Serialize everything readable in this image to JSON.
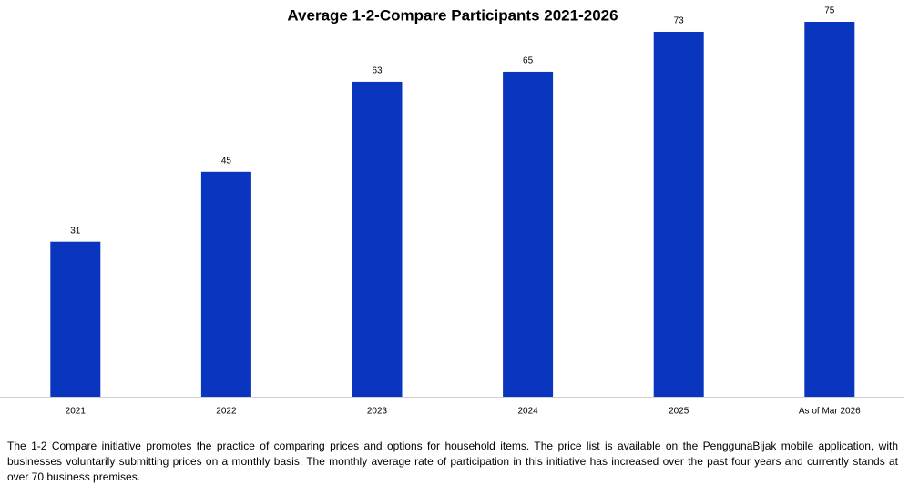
{
  "chart_data": {
    "type": "bar",
    "title": "Average 1-2-Compare Participants 2021-2026",
    "categories": [
      "2021",
      "2022",
      "2023",
      "2024",
      "2025",
      "As of Mar 2026"
    ],
    "values": [
      31,
      45,
      63,
      65,
      73,
      75
    ],
    "color": "#0a35be"
  },
  "caption": "The 1-2 Compare initiative promotes the practice of comparing prices and options for household items. The price list is available on the PenggunaBijak mobile application, with businesses voluntarily submitting prices on a monthly basis. The monthly average rate of participation in this initiative has increased over the past four years and currently stands at over 70 business premises."
}
